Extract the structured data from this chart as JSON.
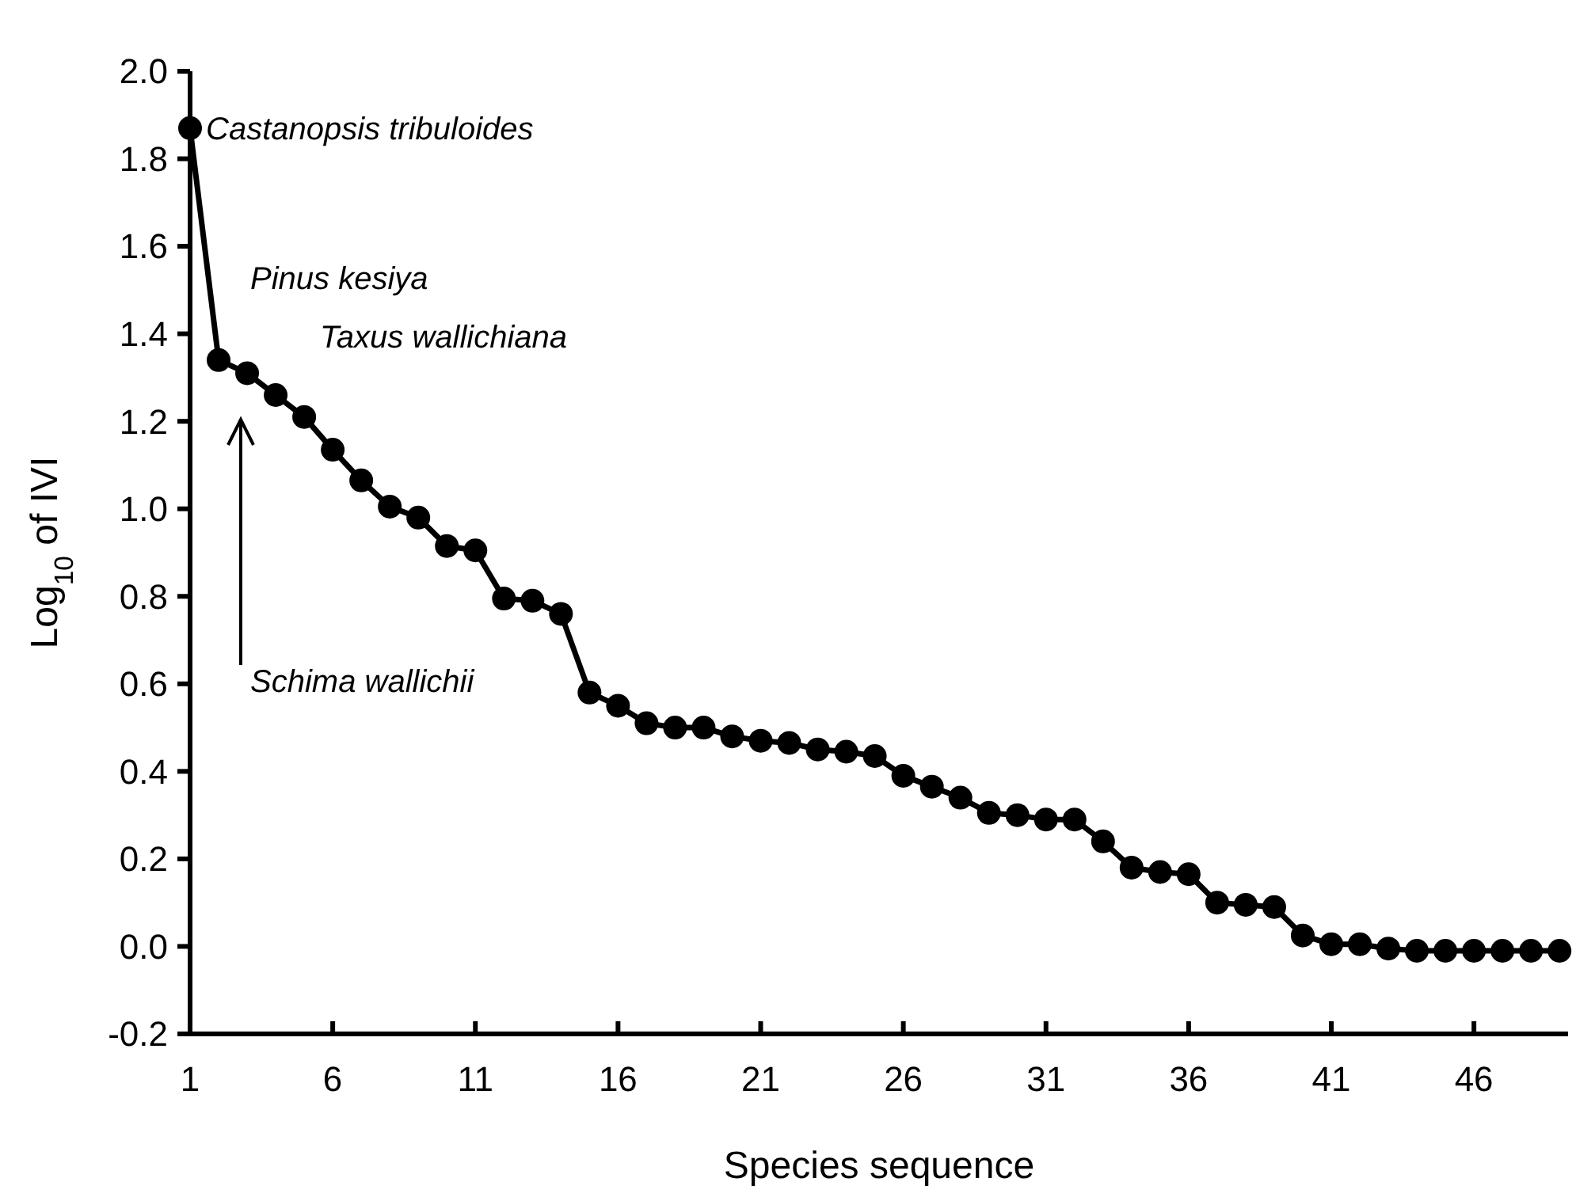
{
  "chart_data": {
    "type": "line",
    "xlabel": "Species sequence",
    "ylabel": "Log$_{10}$ of IVI",
    "x": [
      1,
      2,
      3,
      4,
      5,
      6,
      7,
      8,
      9,
      10,
      11,
      12,
      13,
      14,
      15,
      16,
      17,
      18,
      19,
      20,
      21,
      22,
      23,
      24,
      25,
      26,
      27,
      28,
      29,
      30,
      31,
      32,
      33,
      34,
      35,
      36,
      37,
      38,
      39,
      40,
      41,
      42,
      43,
      44,
      45,
      46,
      47,
      48,
      49
    ],
    "series": [
      {
        "color": "#000000",
        "values": [
          1.87,
          1.34,
          1.31,
          1.26,
          1.21,
          1.135,
          1.065,
          1.005,
          0.98,
          0.915,
          0.905,
          0.795,
          0.79,
          0.76,
          0.58,
          0.55,
          0.51,
          0.5,
          0.5,
          0.48,
          0.47,
          0.465,
          0.45,
          0.445,
          0.435,
          0.39,
          0.365,
          0.34,
          0.305,
          0.3,
          0.29,
          0.29,
          0.24,
          0.18,
          0.17,
          0.165,
          0.1,
          0.095,
          0.09,
          0.025,
          0.005,
          0.005,
          -0.005,
          -0.01,
          -0.01,
          -0.01,
          -0.01,
          -0.01,
          -0.01
        ]
      }
    ],
    "xlim": [
      1,
      49.3
    ],
    "xticks": [
      1,
      6,
      11,
      16,
      21,
      26,
      31,
      36,
      41,
      46
    ],
    "ylim": [
      -0.2,
      2.0
    ],
    "yticks": [
      {
        "value": -0.2,
        "label": "-0.2"
      },
      {
        "value": 0,
        "label": "0.0"
      },
      {
        "value": 0.2,
        "label": "0.2"
      },
      {
        "value": 0.4,
        "label": "0.4"
      },
      {
        "value": 0.6,
        "label": "0.6"
      },
      {
        "value": 0.8,
        "label": "0.8"
      },
      {
        "value": 1,
        "label": "1.0"
      },
      {
        "value": 1.2,
        "label": "1.2"
      },
      {
        "value": 1.4,
        "label": "1.4"
      },
      {
        "value": 1.6,
        "label": "1.6"
      },
      {
        "value": 1.8,
        "label": "1.8"
      },
      {
        "value": 2,
        "label": "2.0"
      }
    ],
    "annotations": [
      {
        "text": "Castanopsis tribuloides",
        "x": 1,
        "y": 1.87
      },
      {
        "text": "Pinus kesiya",
        "x": 2,
        "y": 1.34
      },
      {
        "text": "Taxus wallichiana",
        "x": 4,
        "y": 1.26
      },
      "Schima wallichii"
    ],
    "marker": "circle",
    "line_style": "solid",
    "grid": false
  }
}
